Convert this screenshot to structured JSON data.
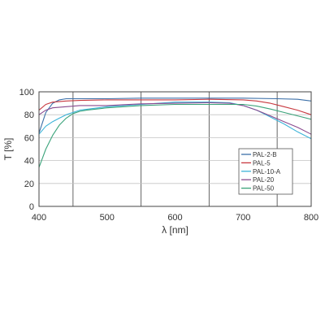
{
  "chart_data": {
    "type": "line",
    "xlabel": "λ [nm]",
    "ylabel": "T [%]",
    "xlim": [
      400,
      800
    ],
    "ylim": [
      0,
      100
    ],
    "xticks": [
      400,
      500,
      600,
      700,
      800
    ],
    "yticks": [
      0,
      20,
      40,
      60,
      80,
      100
    ],
    "x_grid": [
      450,
      550,
      650,
      750
    ],
    "y_grid": [
      20,
      40,
      60,
      80
    ],
    "legend_position": "lower-right",
    "series": [
      {
        "name": "PAL-2-B",
        "color": "#3b6fa8",
        "x": [
          400,
          410,
          420,
          430,
          440,
          450,
          500,
          550,
          600,
          650,
          700,
          750,
          780,
          800
        ],
        "y": [
          64,
          82,
          90,
          93,
          94,
          94,
          94,
          94.5,
          94.5,
          94.5,
          94.5,
          94,
          93.5,
          92
        ]
      },
      {
        "name": "PAL-5",
        "color": "#c8383f",
        "x": [
          400,
          410,
          420,
          440,
          460,
          500,
          550,
          600,
          650,
          700,
          720,
          740,
          760,
          780,
          800
        ],
        "y": [
          84,
          89,
          91,
          92,
          92.5,
          93,
          93,
          93,
          93.5,
          93,
          92,
          90,
          87,
          84,
          80
        ]
      },
      {
        "name": "PAL-10-A",
        "color": "#3cb3d8",
        "x": [
          400,
          410,
          420,
          430,
          440,
          450,
          460,
          500,
          550,
          600,
          650,
          680,
          700,
          720,
          740,
          760,
          780,
          800
        ],
        "y": [
          63,
          70,
          74,
          77,
          80,
          82,
          84,
          87,
          89,
          91,
          91,
          90.5,
          88,
          84,
          78,
          72,
          65,
          59
        ]
      },
      {
        "name": "PAL-20",
        "color": "#8a4a8f",
        "x": [
          400,
          410,
          420,
          440,
          460,
          500,
          550,
          600,
          650,
          680,
          700,
          720,
          740,
          760,
          780,
          800
        ],
        "y": [
          80,
          84,
          86,
          87,
          88,
          88,
          89.5,
          90,
          90.5,
          90,
          88,
          84,
          79,
          74,
          69,
          63
        ]
      },
      {
        "name": "PAL-50",
        "color": "#3aa37a",
        "x": [
          400,
          405,
          410,
          420,
          430,
          440,
          450,
          460,
          470,
          500,
          550,
          600,
          650,
          700,
          720,
          740,
          760,
          780,
          800
        ],
        "y": [
          34,
          42,
          50,
          62,
          71,
          77,
          81,
          83,
          84,
          86,
          88,
          89,
          89,
          89,
          87.5,
          85,
          82,
          79,
          76
        ]
      }
    ]
  }
}
